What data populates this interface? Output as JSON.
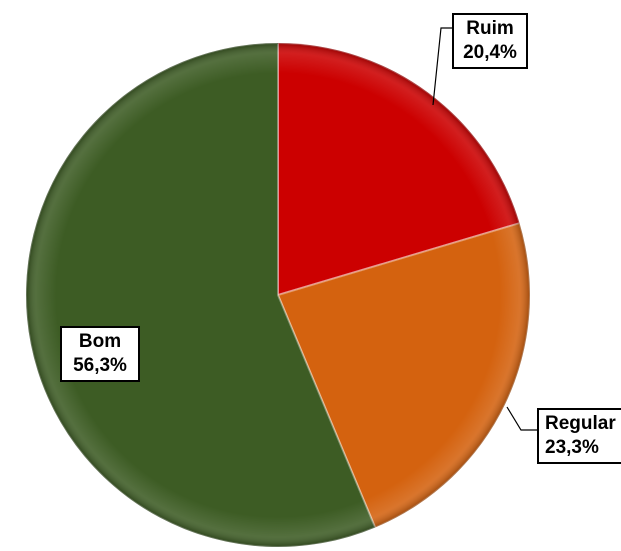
{
  "chart_data": {
    "type": "pie",
    "title": "",
    "slices": [
      {
        "label": "Ruim",
        "value": 20.4,
        "value_text": "20,4%",
        "color": "#cc0000"
      },
      {
        "label": "Regular",
        "value": 23.3,
        "value_text": "23,3%",
        "color": "#d4620f"
      },
      {
        "label": "Bom",
        "value": 56.3,
        "value_text": "56,3%",
        "color": "#3d5c24"
      }
    ],
    "start_angle": "12 o'clock",
    "direction": "clockwise",
    "legend": "none"
  }
}
